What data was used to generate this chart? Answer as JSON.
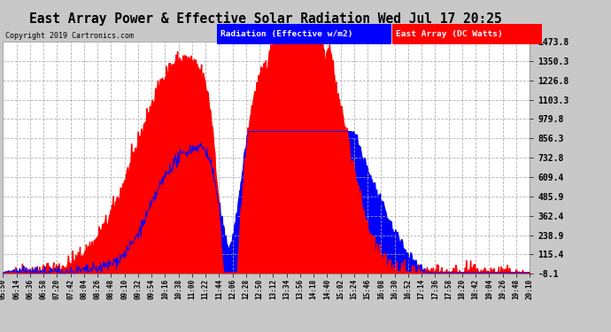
{
  "title": "East Array Power & Effective Solar Radiation Wed Jul 17 20:25",
  "copyright": "Copyright 2019 Cartronics.com",
  "yticks": [
    1473.8,
    1350.3,
    1226.8,
    1103.3,
    979.8,
    856.3,
    732.8,
    609.4,
    485.9,
    362.4,
    238.9,
    115.4,
    -8.1
  ],
  "ymin": -8.1,
  "ymax": 1473.8,
  "legend_blue_label": "Radiation (Effective w/m2)",
  "legend_red_label": "East Array (DC Watts)",
  "bg_color": "#c8c8c8",
  "plot_bg_color": "#ffffff",
  "grid_color": "#aaaaaa",
  "title_color": "black",
  "x_tick_labels": [
    "05:50",
    "06:14",
    "06:36",
    "06:58",
    "07:20",
    "07:42",
    "08:04",
    "08:26",
    "08:48",
    "09:10",
    "09:32",
    "09:54",
    "10:16",
    "10:38",
    "11:00",
    "11:22",
    "11:44",
    "12:06",
    "12:28",
    "12:50",
    "13:12",
    "13:34",
    "13:56",
    "14:18",
    "14:40",
    "15:02",
    "15:24",
    "15:46",
    "16:08",
    "16:30",
    "16:52",
    "17:14",
    "17:36",
    "17:58",
    "18:20",
    "18:42",
    "19:04",
    "19:26",
    "19:48",
    "20:10"
  ],
  "n_points": 860
}
